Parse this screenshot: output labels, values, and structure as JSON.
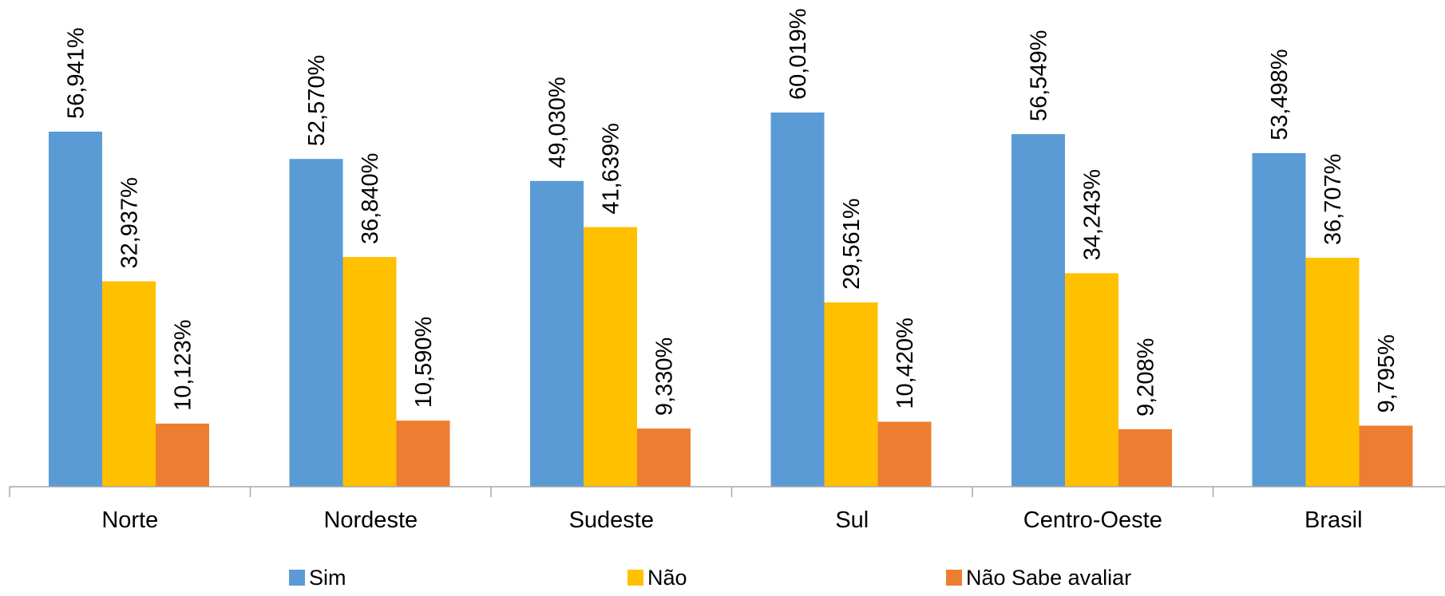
{
  "chart_data": {
    "type": "bar",
    "title": "",
    "xlabel": "",
    "ylabel": "",
    "ylim": [
      0,
      70
    ],
    "grid": false,
    "legend_position": "bottom",
    "categories": [
      "Norte",
      "Nordeste",
      "Sudeste",
      "Sul",
      "Centro-Oeste",
      "Brasil"
    ],
    "series": [
      {
        "name": "Sim",
        "color": "#5B9BD5",
        "values": [
          56.941,
          52.57,
          49.03,
          60.019,
          56.549,
          53.498
        ],
        "labels": [
          "56,941%",
          "52,570%",
          "49,030%",
          "60,019%",
          "56,549%",
          "53,498%"
        ]
      },
      {
        "name": "Não",
        "color": "#FFC000",
        "values": [
          32.937,
          36.84,
          41.639,
          29.561,
          34.243,
          36.707
        ],
        "labels": [
          "32,937%",
          "36,840%",
          "41,639%",
          "29,561%",
          "34,243%",
          "36,707%"
        ]
      },
      {
        "name": "Não Sabe avaliar",
        "color": "#ED7D31",
        "values": [
          10.123,
          10.59,
          9.33,
          10.42,
          9.208,
          9.795
        ],
        "labels": [
          "10,123%",
          "10,590%",
          "9,330%",
          "10,420%",
          "9,208%",
          "9,795%"
        ]
      }
    ]
  }
}
